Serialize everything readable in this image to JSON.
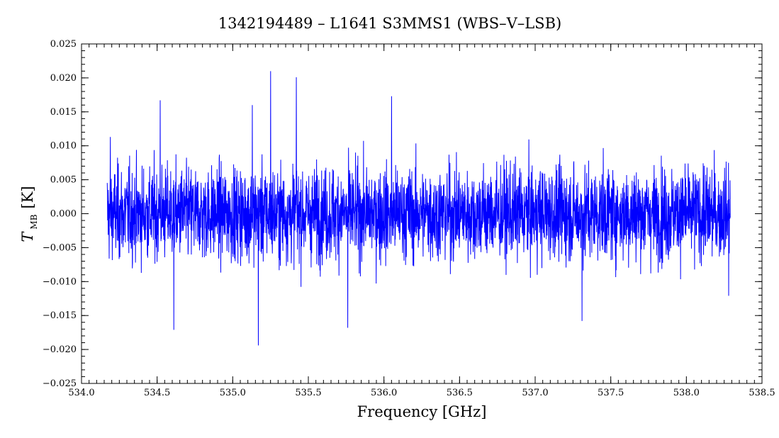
{
  "chart_data": {
    "type": "line",
    "title": "1342194489 – L1641 S3MMS1 (WBS–V–LSB)",
    "xlabel": "Frequency [GHz]",
    "ylabel_main": "T",
    "ylabel_sub": "MB",
    "ylabel_unit": "[K]",
    "xlim": [
      534.0,
      538.5
    ],
    "ylim": [
      -0.025,
      0.025
    ],
    "x_ticks": [
      "534.0",
      "534.5",
      "535.0",
      "535.5",
      "536.0",
      "536.5",
      "537.0",
      "537.5",
      "538.0",
      "538.5"
    ],
    "y_ticks": [
      "0.025",
      "0.020",
      "0.015",
      "0.010",
      "0.005",
      "0.000",
      "−0.005",
      "−0.010",
      "−0.015",
      "−0.020",
      "−0.025"
    ],
    "grid": false,
    "series": [
      {
        "color": "#0000ff",
        "x_range": [
          534.17,
          538.29
        ],
        "baseline": 0.0,
        "noise_rms": 0.004,
        "peaks": [
          {
            "x": 534.19,
            "y": 0.0113
          },
          {
            "x": 534.52,
            "y": 0.0167
          },
          {
            "x": 534.61,
            "y": -0.0171
          },
          {
            "x": 535.13,
            "y": 0.016
          },
          {
            "x": 535.17,
            "y": -0.0194
          },
          {
            "x": 535.25,
            "y": 0.021
          },
          {
            "x": 535.42,
            "y": 0.0201
          },
          {
            "x": 535.76,
            "y": -0.0168
          },
          {
            "x": 536.05,
            "y": 0.0173
          },
          {
            "x": 537.31,
            "y": -0.0158
          },
          {
            "x": 538.28,
            "y": -0.0121
          }
        ]
      }
    ]
  }
}
